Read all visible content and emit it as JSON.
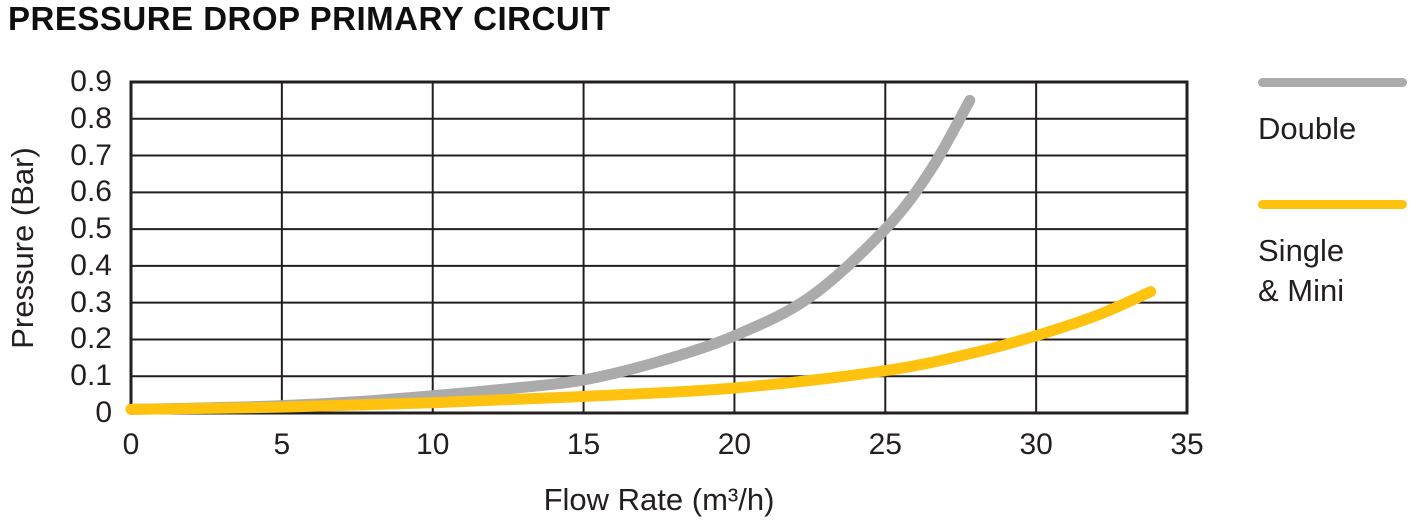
{
  "chart_data": {
    "type": "line",
    "title": "PRESSURE DROP PRIMARY CIRCUIT",
    "xlabel": "Flow Rate (m³/h)",
    "ylabel": "Pressure (Bar)",
    "xlim": [
      0,
      35
    ],
    "ylim": [
      0,
      0.9
    ],
    "grid": true,
    "grid_color": "#231f20",
    "legend_position": "right",
    "xticks": {
      "values": [
        0,
        5,
        10,
        15,
        20,
        25,
        30,
        35
      ],
      "labels": [
        "0",
        "5",
        "10",
        "15",
        "20",
        "25",
        "30",
        "35"
      ]
    },
    "yticks": {
      "values": [
        0.9,
        0.8,
        0.7,
        0.6,
        0.5,
        0.4,
        0.3,
        0.2,
        0.1,
        0
      ],
      "labels": [
        "0.9",
        "0.8",
        "0.7",
        "0.6",
        "0.5",
        "0.4",
        "0.3",
        "0.2",
        "0.1",
        "0"
      ]
    },
    "series": [
      {
        "name": "Double",
        "color": "#ABABAB",
        "points": [
          [
            0,
            0.01
          ],
          [
            2.5,
            0.014
          ],
          [
            5,
            0.02
          ],
          [
            7.5,
            0.031
          ],
          [
            10,
            0.047
          ],
          [
            12.5,
            0.066
          ],
          [
            15,
            0.09
          ],
          [
            17.5,
            0.14
          ],
          [
            20,
            0.21
          ],
          [
            22.5,
            0.315
          ],
          [
            25,
            0.5
          ],
          [
            26.5,
            0.66
          ],
          [
            27.8,
            0.85
          ]
        ]
      },
      {
        "name": "Single & Mini",
        "color": "#FFC20E",
        "points": [
          [
            0,
            0.01
          ],
          [
            5,
            0.016
          ],
          [
            10,
            0.028
          ],
          [
            15,
            0.045
          ],
          [
            20,
            0.068
          ],
          [
            25,
            0.115
          ],
          [
            28,
            0.165
          ],
          [
            30,
            0.21
          ],
          [
            32,
            0.265
          ],
          [
            33.8,
            0.33
          ]
        ]
      }
    ]
  }
}
